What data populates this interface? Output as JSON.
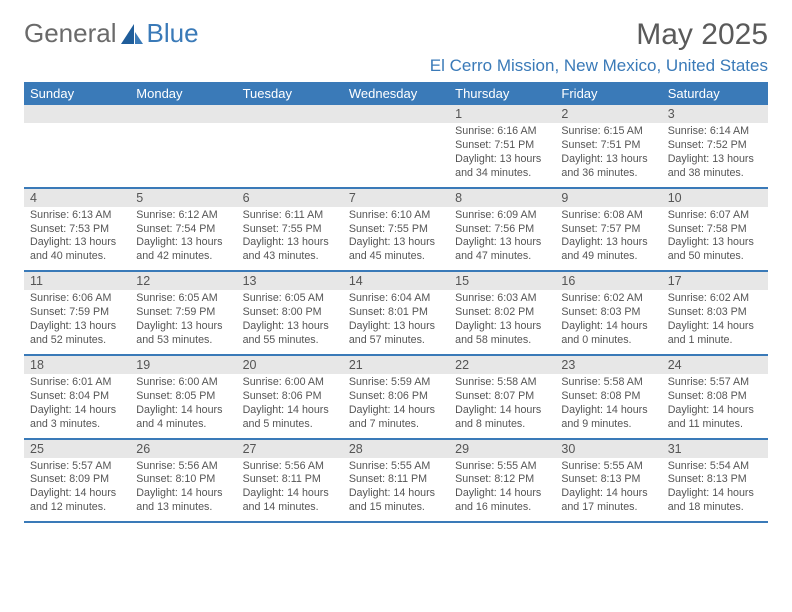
{
  "logo": {
    "part1": "General",
    "part2": "Blue"
  },
  "month_title": "May 2025",
  "location": "El Cerro Mission, New Mexico, United States",
  "header_bg": "#3a7ab8",
  "header_text": "#ffffff",
  "daynum_bg": "#e7e7e7",
  "row_border": "#3a7ab8",
  "columns": [
    "Sunday",
    "Monday",
    "Tuesday",
    "Wednesday",
    "Thursday",
    "Friday",
    "Saturday"
  ],
  "weeks": [
    [
      {
        "n": "",
        "sr": "",
        "ss": "",
        "dl": ""
      },
      {
        "n": "",
        "sr": "",
        "ss": "",
        "dl": ""
      },
      {
        "n": "",
        "sr": "",
        "ss": "",
        "dl": ""
      },
      {
        "n": "",
        "sr": "",
        "ss": "",
        "dl": ""
      },
      {
        "n": "1",
        "sr": "Sunrise: 6:16 AM",
        "ss": "Sunset: 7:51 PM",
        "dl": "Daylight: 13 hours and 34 minutes."
      },
      {
        "n": "2",
        "sr": "Sunrise: 6:15 AM",
        "ss": "Sunset: 7:51 PM",
        "dl": "Daylight: 13 hours and 36 minutes."
      },
      {
        "n": "3",
        "sr": "Sunrise: 6:14 AM",
        "ss": "Sunset: 7:52 PM",
        "dl": "Daylight: 13 hours and 38 minutes."
      }
    ],
    [
      {
        "n": "4",
        "sr": "Sunrise: 6:13 AM",
        "ss": "Sunset: 7:53 PM",
        "dl": "Daylight: 13 hours and 40 minutes."
      },
      {
        "n": "5",
        "sr": "Sunrise: 6:12 AM",
        "ss": "Sunset: 7:54 PM",
        "dl": "Daylight: 13 hours and 42 minutes."
      },
      {
        "n": "6",
        "sr": "Sunrise: 6:11 AM",
        "ss": "Sunset: 7:55 PM",
        "dl": "Daylight: 13 hours and 43 minutes."
      },
      {
        "n": "7",
        "sr": "Sunrise: 6:10 AM",
        "ss": "Sunset: 7:55 PM",
        "dl": "Daylight: 13 hours and 45 minutes."
      },
      {
        "n": "8",
        "sr": "Sunrise: 6:09 AM",
        "ss": "Sunset: 7:56 PM",
        "dl": "Daylight: 13 hours and 47 minutes."
      },
      {
        "n": "9",
        "sr": "Sunrise: 6:08 AM",
        "ss": "Sunset: 7:57 PM",
        "dl": "Daylight: 13 hours and 49 minutes."
      },
      {
        "n": "10",
        "sr": "Sunrise: 6:07 AM",
        "ss": "Sunset: 7:58 PM",
        "dl": "Daylight: 13 hours and 50 minutes."
      }
    ],
    [
      {
        "n": "11",
        "sr": "Sunrise: 6:06 AM",
        "ss": "Sunset: 7:59 PM",
        "dl": "Daylight: 13 hours and 52 minutes."
      },
      {
        "n": "12",
        "sr": "Sunrise: 6:05 AM",
        "ss": "Sunset: 7:59 PM",
        "dl": "Daylight: 13 hours and 53 minutes."
      },
      {
        "n": "13",
        "sr": "Sunrise: 6:05 AM",
        "ss": "Sunset: 8:00 PM",
        "dl": "Daylight: 13 hours and 55 minutes."
      },
      {
        "n": "14",
        "sr": "Sunrise: 6:04 AM",
        "ss": "Sunset: 8:01 PM",
        "dl": "Daylight: 13 hours and 57 minutes."
      },
      {
        "n": "15",
        "sr": "Sunrise: 6:03 AM",
        "ss": "Sunset: 8:02 PM",
        "dl": "Daylight: 13 hours and 58 minutes."
      },
      {
        "n": "16",
        "sr": "Sunrise: 6:02 AM",
        "ss": "Sunset: 8:03 PM",
        "dl": "Daylight: 14 hours and 0 minutes."
      },
      {
        "n": "17",
        "sr": "Sunrise: 6:02 AM",
        "ss": "Sunset: 8:03 PM",
        "dl": "Daylight: 14 hours and 1 minute."
      }
    ],
    [
      {
        "n": "18",
        "sr": "Sunrise: 6:01 AM",
        "ss": "Sunset: 8:04 PM",
        "dl": "Daylight: 14 hours and 3 minutes."
      },
      {
        "n": "19",
        "sr": "Sunrise: 6:00 AM",
        "ss": "Sunset: 8:05 PM",
        "dl": "Daylight: 14 hours and 4 minutes."
      },
      {
        "n": "20",
        "sr": "Sunrise: 6:00 AM",
        "ss": "Sunset: 8:06 PM",
        "dl": "Daylight: 14 hours and 5 minutes."
      },
      {
        "n": "21",
        "sr": "Sunrise: 5:59 AM",
        "ss": "Sunset: 8:06 PM",
        "dl": "Daylight: 14 hours and 7 minutes."
      },
      {
        "n": "22",
        "sr": "Sunrise: 5:58 AM",
        "ss": "Sunset: 8:07 PM",
        "dl": "Daylight: 14 hours and 8 minutes."
      },
      {
        "n": "23",
        "sr": "Sunrise: 5:58 AM",
        "ss": "Sunset: 8:08 PM",
        "dl": "Daylight: 14 hours and 9 minutes."
      },
      {
        "n": "24",
        "sr": "Sunrise: 5:57 AM",
        "ss": "Sunset: 8:08 PM",
        "dl": "Daylight: 14 hours and 11 minutes."
      }
    ],
    [
      {
        "n": "25",
        "sr": "Sunrise: 5:57 AM",
        "ss": "Sunset: 8:09 PM",
        "dl": "Daylight: 14 hours and 12 minutes."
      },
      {
        "n": "26",
        "sr": "Sunrise: 5:56 AM",
        "ss": "Sunset: 8:10 PM",
        "dl": "Daylight: 14 hours and 13 minutes."
      },
      {
        "n": "27",
        "sr": "Sunrise: 5:56 AM",
        "ss": "Sunset: 8:11 PM",
        "dl": "Daylight: 14 hours and 14 minutes."
      },
      {
        "n": "28",
        "sr": "Sunrise: 5:55 AM",
        "ss": "Sunset: 8:11 PM",
        "dl": "Daylight: 14 hours and 15 minutes."
      },
      {
        "n": "29",
        "sr": "Sunrise: 5:55 AM",
        "ss": "Sunset: 8:12 PM",
        "dl": "Daylight: 14 hours and 16 minutes."
      },
      {
        "n": "30",
        "sr": "Sunrise: 5:55 AM",
        "ss": "Sunset: 8:13 PM",
        "dl": "Daylight: 14 hours and 17 minutes."
      },
      {
        "n": "31",
        "sr": "Sunrise: 5:54 AM",
        "ss": "Sunset: 8:13 PM",
        "dl": "Daylight: 14 hours and 18 minutes."
      }
    ]
  ]
}
